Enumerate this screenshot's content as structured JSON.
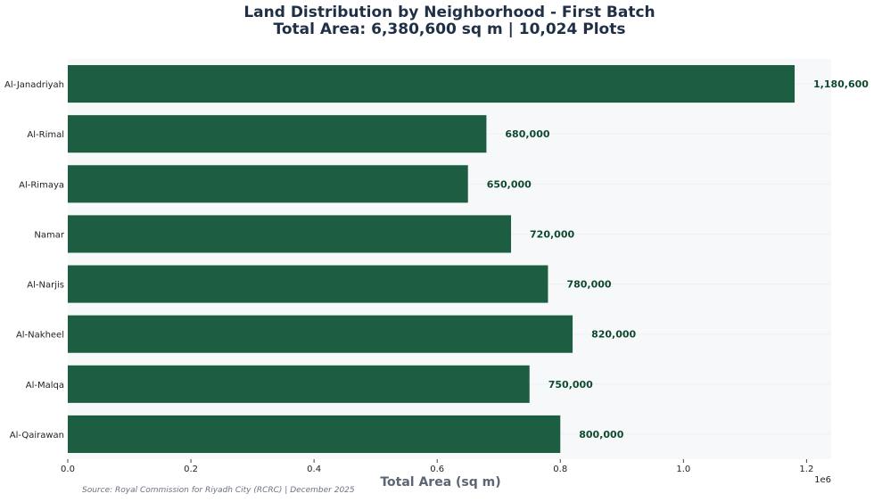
{
  "chart_data": {
    "type": "bar",
    "orientation": "horizontal",
    "title": "Land Distribution by Neighborhood - First Batch",
    "subtitle": "Total Area: 6,380,600 sq m | 10,024 Plots",
    "xlabel": "Total Area (sq m)",
    "ylabel": "",
    "x_scale_label": "1e6",
    "x_ticks": [
      "0.0",
      "0.2",
      "0.4",
      "0.6",
      "0.8",
      "1.0",
      "1.2"
    ],
    "xlim": [
      0,
      1240000
    ],
    "categories": [
      "Al-Janadriyah",
      "Al-Rimal",
      "Al-Rimaya",
      "Namar",
      "Al-Narjis",
      "Al-Nakheel",
      "Al-Malqa",
      "Al-Qairawan"
    ],
    "values": [
      1180600,
      680000,
      650000,
      720000,
      780000,
      820000,
      750000,
      800000
    ],
    "value_labels": [
      "1,180,600",
      "680,000",
      "650,000",
      "720,000",
      "780,000",
      "820,000",
      "750,000",
      "800,000"
    ],
    "bar_color": "#1d5e42",
    "label_color": "#0f4a2e",
    "plot_background": "#f7f8fa",
    "grid": true
  },
  "footer": {
    "source": "Source: Royal Commission for Riyadh City (RCRC) | December 2025"
  }
}
